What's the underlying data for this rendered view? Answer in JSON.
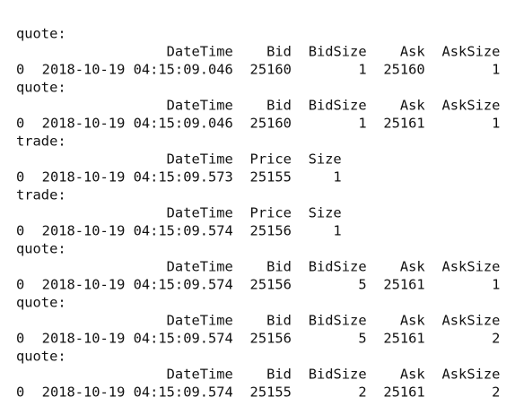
{
  "blocks": [
    {
      "label": "quote:",
      "columns": [
        "DateTime",
        "Bid",
        "BidSize",
        "Ask",
        "AskSize"
      ],
      "index": 0,
      "row": [
        "2018-10-19 04:15:09.046",
        25160,
        1,
        25160,
        1
      ]
    },
    {
      "label": "quote:",
      "columns": [
        "DateTime",
        "Bid",
        "BidSize",
        "Ask",
        "AskSize"
      ],
      "index": 0,
      "row": [
        "2018-10-19 04:15:09.046",
        25160,
        1,
        25161,
        1
      ]
    },
    {
      "label": "trade:",
      "columns": [
        "DateTime",
        "Price",
        "Size"
      ],
      "index": 0,
      "row": [
        "2018-10-19 04:15:09.573",
        25155,
        1
      ]
    },
    {
      "label": "trade:",
      "columns": [
        "DateTime",
        "Price",
        "Size"
      ],
      "index": 0,
      "row": [
        "2018-10-19 04:15:09.574",
        25156,
        1
      ]
    },
    {
      "label": "quote:",
      "columns": [
        "DateTime",
        "Bid",
        "BidSize",
        "Ask",
        "AskSize"
      ],
      "index": 0,
      "row": [
        "2018-10-19 04:15:09.574",
        25156,
        5,
        25161,
        1
      ]
    },
    {
      "label": "quote:",
      "columns": [
        "DateTime",
        "Bid",
        "BidSize",
        "Ask",
        "AskSize"
      ],
      "index": 0,
      "row": [
        "2018-10-19 04:15:09.574",
        25156,
        5,
        25161,
        2
      ]
    },
    {
      "label": "quote:",
      "columns": [
        "DateTime",
        "Bid",
        "BidSize",
        "Ask",
        "AskSize"
      ],
      "index": 0,
      "row": [
        "2018-10-19 04:15:09.574",
        25155,
        2,
        25161,
        2
      ]
    }
  ]
}
